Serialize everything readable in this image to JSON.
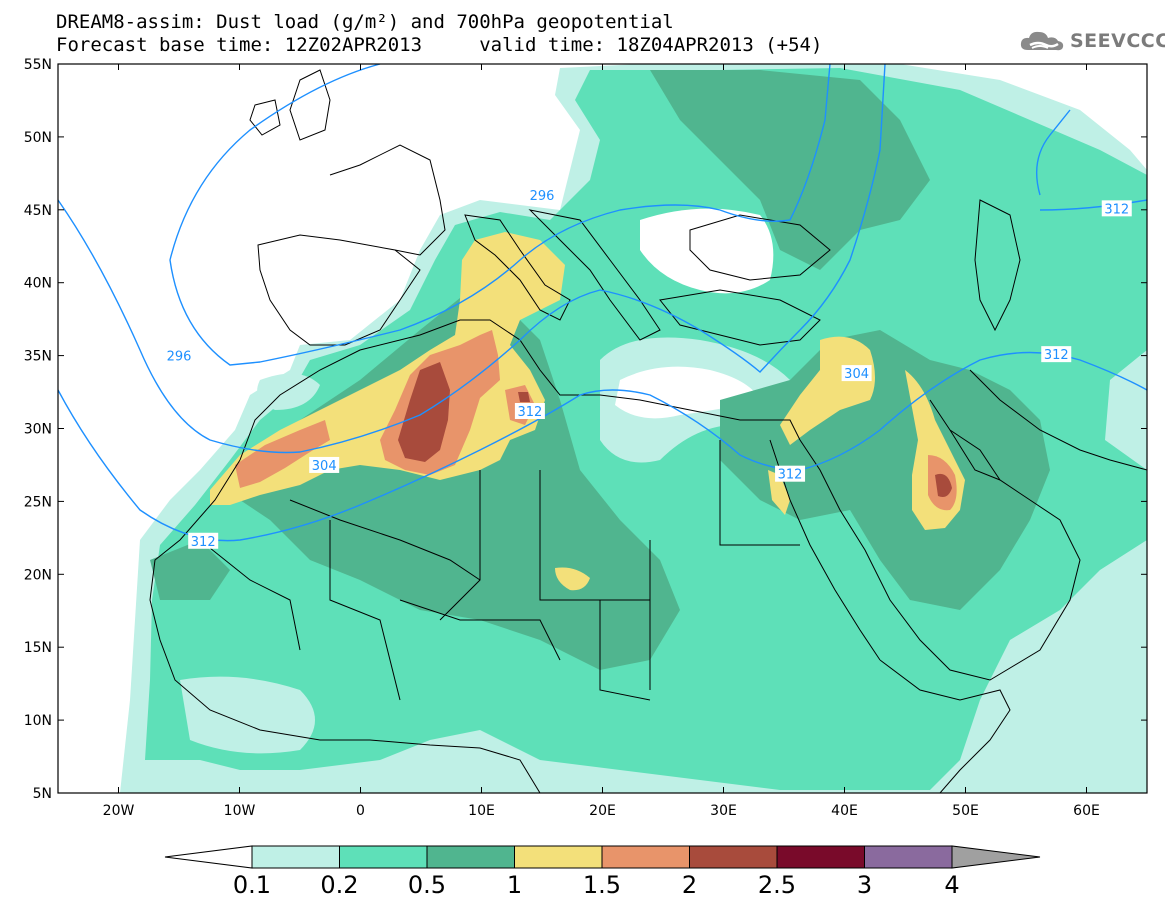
{
  "header": {
    "title_line1": "DREAM8-assim: Dust load (g/m²) and 700hPa geopotential",
    "title_line2": "Forecast base time: 12Z02APR2013     valid time: 18Z04APR2013 (+54)"
  },
  "logo": {
    "text": "SEEVCCC",
    "icon": "cloud-logo-icon"
  },
  "map": {
    "projection": "lat-lon",
    "lon_range": [
      -25,
      65
    ],
    "lat_range": [
      5,
      55
    ],
    "lat_labels": [
      "55N",
      "50N",
      "45N",
      "40N",
      "35N",
      "30N",
      "25N",
      "20N",
      "15N",
      "10N",
      "5N"
    ],
    "lon_labels": [
      "20W",
      "10W",
      "0",
      "10E",
      "20E",
      "30E",
      "40E",
      "50E",
      "60E"
    ],
    "contour_color": "#1e90ff",
    "contour_labels": [
      {
        "text": "296",
        "lon": 15,
        "lat": 46
      },
      {
        "text": "296",
        "lon": -15,
        "lat": 35
      },
      {
        "text": "304",
        "lon": -3,
        "lat": 27.5
      },
      {
        "text": "304",
        "lon": 41,
        "lat": 33.8
      },
      {
        "text": "312",
        "lon": 14,
        "lat": 31.2
      },
      {
        "text": "312",
        "lon": 35.5,
        "lat": 26.9
      },
      {
        "text": "312",
        "lon": 57.5,
        "lat": 35.1
      },
      {
        "text": "312",
        "lon": 62.5,
        "lat": 45.1
      },
      {
        "text": "312",
        "lon": -13,
        "lat": 22.3
      }
    ]
  },
  "colorbar": {
    "labels": [
      "0.1",
      "0.2",
      "0.5",
      "1",
      "1.5",
      "2",
      "2.5",
      "3",
      "4"
    ],
    "colors": [
      "#bff0e6",
      "#5ee0b8",
      "#50b58f",
      "#f3e07a",
      "#e8946a",
      "#a84b3c",
      "#790a2a",
      "#8a6a9e"
    ],
    "low_color": "#ffffff",
    "high_color": "#a0a0a0"
  },
  "legend_colors": {
    "lvl_01": "#bff0e6",
    "lvl_02": "#5ee0b8",
    "lvl_05": "#50b58f",
    "lvl_1": "#f3e07a",
    "lvl_15": "#e8946a",
    "lvl_2": "#a84b3c"
  }
}
